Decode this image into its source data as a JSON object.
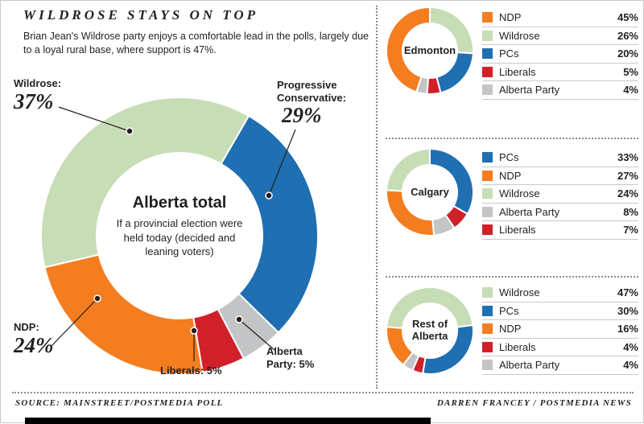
{
  "meta": {
    "title": "WILDROSE STAYS ON TOP",
    "subtitle": "Brian Jean's Wildrose party enjoys a comfortable lead in the polls, largely due to a loyal rural base, where support is 47%.",
    "source": "SOURCE: MAINSTREET/POSTMEDIA POLL",
    "credit": "DARREN FRANCEY / POSTMEDIA NEWS"
  },
  "colors": {
    "ndp": "#F47D20",
    "wildrose": "#C7DDB5",
    "pc": "#1F6FB2",
    "liberal": "#D0202A",
    "alberta_party": "#C3C4C6"
  },
  "chart_data": [
    {
      "type": "pie",
      "donut": true,
      "title": "Alberta total",
      "subtitle": "If a provincial election were held today (decided and leaning voters)",
      "start_angle": 30,
      "legend_position": "callouts",
      "segments": [
        {
          "label": "Progressive Conservative",
          "value": 29,
          "color_key": "pc"
        },
        {
          "label": "Alberta Party",
          "value": 5,
          "color_key": "alberta_party"
        },
        {
          "label": "Liberals",
          "value": 5,
          "color_key": "liberal"
        },
        {
          "label": "NDP",
          "value": 24,
          "color_key": "ndp"
        },
        {
          "label": "Wildrose",
          "value": 37,
          "color_key": "wildrose"
        }
      ],
      "callouts": {
        "wildrose": {
          "name": "Wildrose:",
          "pct": "37%"
        },
        "pc": {
          "name": "Progressive Conservative:",
          "pct": "29%"
        },
        "ndp": {
          "name": "NDP:",
          "pct": "24%"
        },
        "liberals": {
          "name": "Liberals: 5%"
        },
        "alberta_party": {
          "name": "Alberta Party: 5%"
        }
      }
    },
    {
      "type": "pie",
      "donut": true,
      "title": "Edmonton",
      "start_angle": 0,
      "legend_position": "right",
      "segments": [
        {
          "label": "Wildrose",
          "value": 26,
          "color_key": "wildrose"
        },
        {
          "label": "PCs",
          "value": 20,
          "color_key": "pc"
        },
        {
          "label": "Liberals",
          "value": 5,
          "color_key": "liberal"
        },
        {
          "label": "Alberta Party",
          "value": 4,
          "color_key": "alberta_party"
        },
        {
          "label": "NDP",
          "value": 45,
          "color_key": "ndp"
        }
      ],
      "legend": [
        {
          "label": "NDP",
          "value": "45%",
          "color_key": "ndp"
        },
        {
          "label": "Wildrose",
          "value": "26%",
          "color_key": "wildrose"
        },
        {
          "label": "PCs",
          "value": "20%",
          "color_key": "pc"
        },
        {
          "label": "Liberals",
          "value": "5%",
          "color_key": "liberal"
        },
        {
          "label": "Alberta Party",
          "value": "4%",
          "color_key": "alberta_party"
        }
      ]
    },
    {
      "type": "pie",
      "donut": true,
      "title": "Calgary",
      "start_angle": 0,
      "legend_position": "right",
      "segments": [
        {
          "label": "PCs",
          "value": 33,
          "color_key": "pc"
        },
        {
          "label": "Liberals",
          "value": 7,
          "color_key": "liberal"
        },
        {
          "label": "Alberta Party",
          "value": 8,
          "color_key": "alberta_party"
        },
        {
          "label": "NDP",
          "value": 27,
          "color_key": "ndp"
        },
        {
          "label": "Wildrose",
          "value": 24,
          "color_key": "wildrose"
        }
      ],
      "legend": [
        {
          "label": "PCs",
          "value": "33%",
          "color_key": "pc"
        },
        {
          "label": "NDP",
          "value": "27%",
          "color_key": "ndp"
        },
        {
          "label": "Wildrose",
          "value": "24%",
          "color_key": "wildrose"
        },
        {
          "label": "Alberta Party",
          "value": "8%",
          "color_key": "alberta_party"
        },
        {
          "label": "Liberals",
          "value": "7%",
          "color_key": "liberal"
        }
      ]
    },
    {
      "type": "pie",
      "donut": true,
      "title": "Rest of Alberta",
      "start_angle": 275,
      "legend_position": "right",
      "segments": [
        {
          "label": "Wildrose",
          "value": 47,
          "color_key": "wildrose"
        },
        {
          "label": "PCs",
          "value": 30,
          "color_key": "pc"
        },
        {
          "label": "Liberals",
          "value": 4,
          "color_key": "liberal"
        },
        {
          "label": "Alberta Party",
          "value": 4,
          "color_key": "alberta_party"
        },
        {
          "label": "NDP",
          "value": 16,
          "color_key": "ndp"
        }
      ],
      "legend": [
        {
          "label": "Wildrose",
          "value": "47%",
          "color_key": "wildrose"
        },
        {
          "label": "PCs",
          "value": "30%",
          "color_key": "pc"
        },
        {
          "label": "NDP",
          "value": "16%",
          "color_key": "ndp"
        },
        {
          "label": "Liberals",
          "value": "4%",
          "color_key": "liberal"
        },
        {
          "label": "Alberta Party",
          "value": "4%",
          "color_key": "alberta_party"
        }
      ]
    }
  ]
}
